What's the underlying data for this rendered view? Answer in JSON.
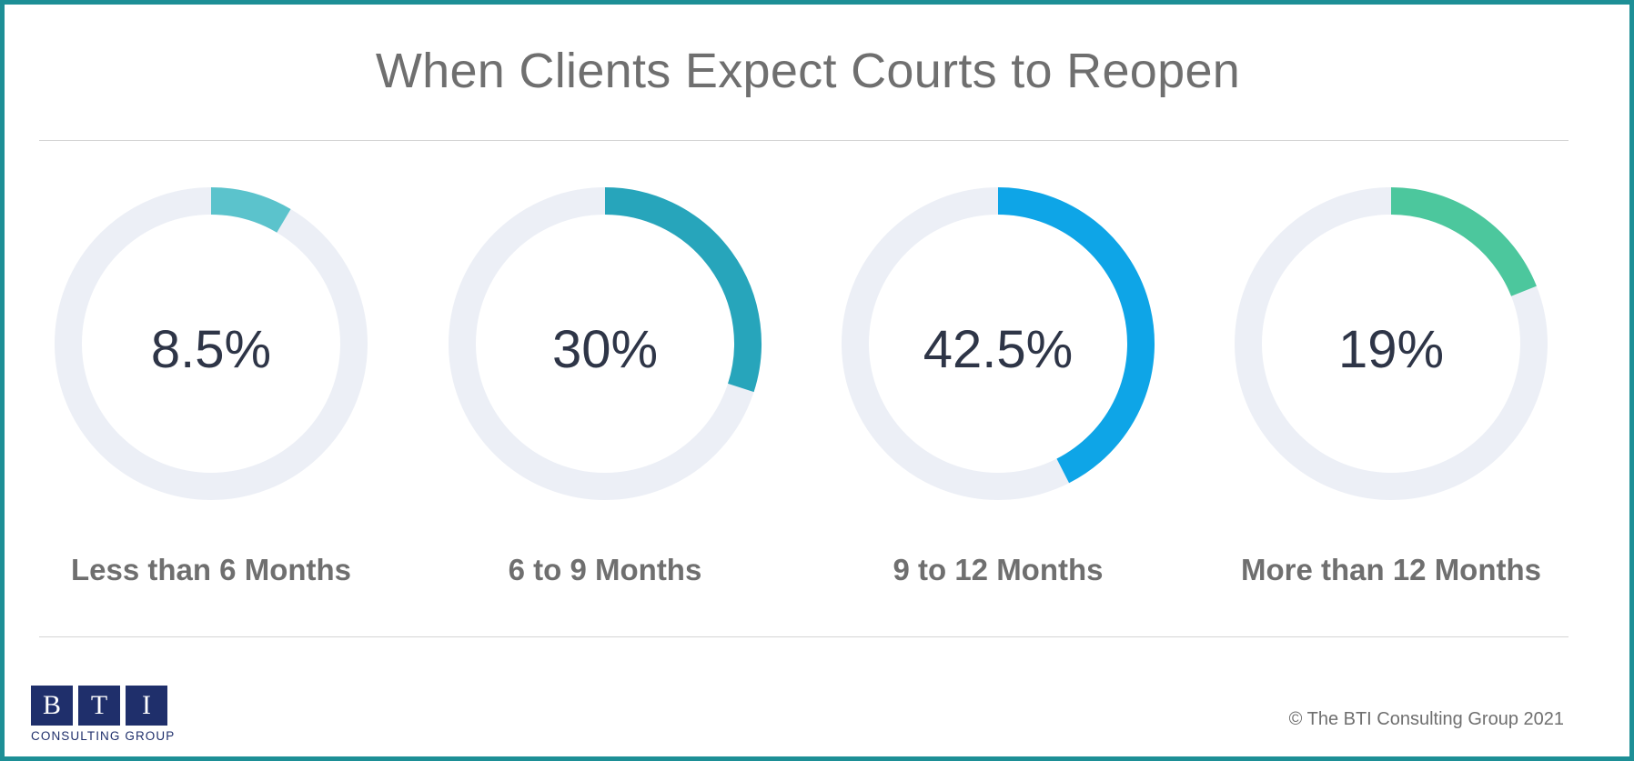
{
  "chart_data": {
    "type": "pie",
    "title": "When Clients Expect Courts to Reopen",
    "categories": [
      "Less than 6 Months",
      "6 to 9 Months",
      "9 to 12 Months",
      "More than 12 Months"
    ],
    "values": [
      8.5,
      30,
      42.5,
      19
    ],
    "value_labels": [
      "8.5%",
      "30%",
      "42.5%",
      "19%"
    ],
    "colors": [
      "#5bc3cc",
      "#27a5bb",
      "#0ea5e7",
      "#4cc79d"
    ],
    "track_color": "#eceff6"
  },
  "footer": {
    "logo_letters": [
      "B",
      "T",
      "I"
    ],
    "logo_subtitle": "CONSULTING GROUP",
    "copyright": "© The BTI Consulting Group 2021"
  }
}
